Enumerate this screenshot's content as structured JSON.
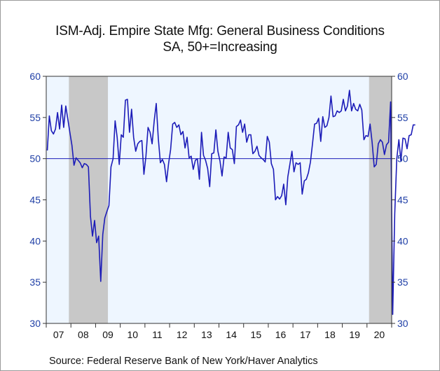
{
  "chart_data": {
    "type": "line",
    "title": "ISM-Adj. Empire State Mfg: General Business Conditions",
    "subtitle": "SA, 50+=Increasing",
    "source": "Source:  Federal Reserve Bank of New York/Haver Analytics",
    "xlabel": "",
    "ylabel": "",
    "ylim": [
      30,
      60
    ],
    "y_ticks": [
      "30",
      "35",
      "40",
      "45",
      "50",
      "55",
      "60"
    ],
    "x_tick_labels": [
      "07",
      "08",
      "09",
      "10",
      "11",
      "12",
      "13",
      "14",
      "15",
      "16",
      "17",
      "18",
      "19",
      "20"
    ],
    "x_range": [
      "2007-01",
      "2020-12"
    ],
    "reference_line": 50,
    "grid": false,
    "shaded_periods": [
      {
        "start": "2007-12",
        "end": "2009-06"
      },
      {
        "start": "2020-02",
        "end": "2020-12"
      }
    ],
    "series": [
      {
        "color": "#1c1cb8",
        "x_start": "2007-01",
        "frequency": "monthly",
        "values": [
          51.0,
          55.2,
          53.4,
          53.0,
          53.6,
          55.6,
          53.6,
          56.5,
          53.8,
          56.4,
          54.8,
          53.2,
          51.6,
          49.2,
          50.1,
          49.8,
          49.5,
          48.9,
          49.4,
          49.3,
          49.0,
          43.0,
          40.6,
          42.5,
          39.8,
          40.6,
          35.1,
          40.8,
          42.8,
          43.6,
          44.3,
          49.0,
          50.0,
          54.6,
          52.6,
          49.3,
          52.9,
          52.6,
          57.1,
          57.2,
          53.2,
          56.0,
          52.6,
          50.9,
          51.8,
          52.1,
          52.2,
          48.1,
          50.3,
          53.8,
          53.2,
          51.8,
          54.6,
          56.7,
          52.5,
          49.5,
          49.9,
          49.3,
          47.2,
          49.4,
          51.1,
          54.2,
          54.4,
          53.8,
          54.1,
          52.9,
          53.3,
          51.3,
          52.6,
          50.1,
          50.3,
          48.7,
          49.8,
          50.0,
          47.5,
          53.2,
          50.4,
          49.8,
          48.8,
          46.6,
          50.6,
          50.7,
          53.5,
          50.9,
          49.7,
          47.9,
          50.2,
          50.1,
          53.2,
          51.3,
          51.1,
          49.4,
          53.9,
          54.1,
          54.7,
          53.2,
          54.2,
          52.0,
          52.9,
          52.9,
          50.6,
          50.9,
          51.5,
          50.4,
          50.1,
          49.9,
          49.6,
          52.7,
          52.0,
          49.4,
          48.7,
          45.0,
          45.4,
          45.1,
          45.5,
          46.9,
          44.4,
          47.8,
          49.3,
          50.9,
          48.4,
          49.5,
          49.3,
          49.5,
          45.7,
          47.3,
          47.5,
          48.3,
          49.6,
          51.8,
          54.2,
          54.3,
          54.9,
          52.1,
          55.1,
          53.8,
          54.0,
          55.0,
          57.6,
          55.1,
          55.2,
          55.8,
          55.6,
          55.8,
          57.2,
          55.8,
          56.4,
          58.3,
          55.8,
          56.7,
          56.0,
          55.8,
          56.6,
          55.9,
          52.3,
          52.8,
          52.7,
          54.2,
          52.0,
          49.0,
          49.3,
          51.8,
          52.3,
          52.0,
          50.5,
          51.7,
          52.0,
          56.9,
          31.1,
          43.3,
          50.0,
          52.3,
          49.7,
          52.5,
          52.4,
          51.2,
          52.8,
          52.9,
          54.1,
          54.1
        ]
      }
    ]
  }
}
